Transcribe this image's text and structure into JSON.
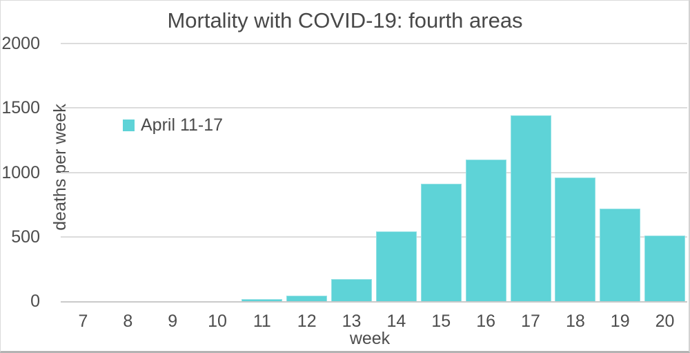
{
  "chart_data": {
    "type": "bar",
    "title": "Mortality with COVID-19: fourth areas",
    "xlabel": "week",
    "ylabel": "deaths per week",
    "categories": [
      "7",
      "8",
      "9",
      "10",
      "11",
      "12",
      "13",
      "14",
      "15",
      "16",
      "17",
      "18",
      "19",
      "20"
    ],
    "values": [
      0,
      0,
      0,
      0,
      15,
      45,
      170,
      540,
      910,
      1100,
      1445,
      960,
      720,
      510
    ],
    "ylim": [
      0,
      2000
    ],
    "yticks": [
      0,
      500,
      1000,
      1500,
      2000
    ],
    "grid": true,
    "legend": {
      "label": "April 11-17",
      "position": "inside-top-left"
    },
    "bar_color": "#5ed3d7",
    "gridline_color": "#dcdcdc",
    "axis_color": "#c9c9c9",
    "text_color": "#4a4a4a"
  }
}
